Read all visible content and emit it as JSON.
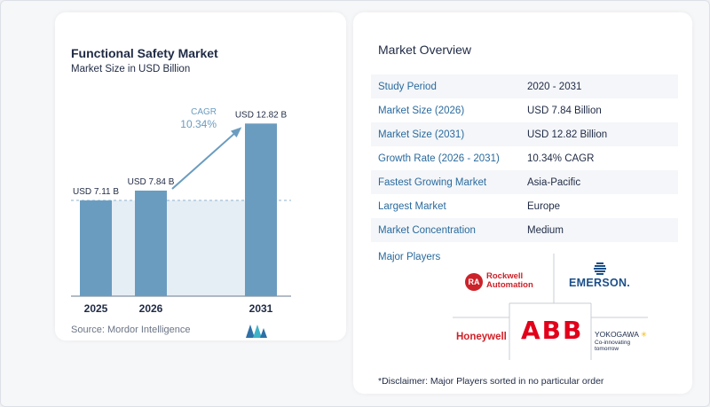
{
  "chart_data": {
    "type": "bar",
    "title": "Functional Safety Market",
    "subtitle": "Market Size in USD Billion",
    "categories": [
      "2025",
      "2026",
      "2031"
    ],
    "values": [
      7.11,
      7.84,
      12.82
    ],
    "value_labels": [
      "USD 7.11 B",
      "USD 7.84 B",
      "USD 12.82 B"
    ],
    "annotation": {
      "label": "CAGR",
      "value": "10.34%"
    },
    "bar_color": "#6a9cc0",
    "source": "Source: Mordor Intelligence"
  },
  "overview": {
    "title": "Market Overview",
    "rows": [
      {
        "label": "Study Period",
        "value": "2020 - 2031"
      },
      {
        "label": "Market Size (2026)",
        "value": "USD 7.84 Billion"
      },
      {
        "label": "Market Size (2031)",
        "value": "USD 12.82 Billion"
      },
      {
        "label": "Growth Rate (2026 - 2031)",
        "value": "10.34% CAGR"
      },
      {
        "label": "Fastest Growing Market",
        "value": "Asia-Pacific"
      },
      {
        "label": "Largest Market",
        "value": "Europe"
      },
      {
        "label": "Market Concentration",
        "value": "Medium"
      }
    ],
    "major_players_title": "Major Players",
    "players": {
      "rockwell_badge": "RA",
      "rockwell_line1": "Rockwell",
      "rockwell_line2": "Automation",
      "emerson": "EMERSON.",
      "honeywell": "Honeywell",
      "abb": "ABB",
      "yokogawa": "YOKOGAWA",
      "yokogawa_tagline": "Co-innovating tomorrow"
    },
    "disclaimer": "*Disclaimer: Major Players sorted in no particular order"
  }
}
